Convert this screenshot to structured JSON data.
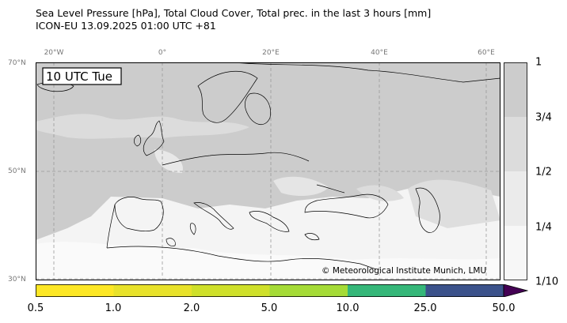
{
  "title_line1": "Sea Level Pressure [hPa], Total Cloud Cover, Total prec. in the last 3 hours [mm]",
  "title_line2": "ICON-EU 13.09.2025 01:00 UTC +81",
  "time_label": "10 UTC Tue",
  "copyright": "© Meteorological Institute Munich, LMU",
  "gridlines": {
    "longitude": [
      "20°W",
      "0°",
      "20°E",
      "40°E",
      "60°E"
    ],
    "latitude": [
      "70°N",
      "50°N",
      "30°N"
    ]
  },
  "cloud_cover_scale": {
    "ticks": [
      "1",
      "3/4",
      "1/2",
      "1/4",
      "1/10"
    ],
    "values": [
      1.0,
      0.75,
      0.5,
      0.25,
      0.1
    ],
    "colors": [
      "#cccccc",
      "#dcdcdc",
      "#ebebeb",
      "#f7f7f7"
    ]
  },
  "precip_scale": {
    "ticks": [
      "0.5",
      "1.0",
      "2.0",
      "5.0",
      "10.0",
      "25.0",
      "50.0"
    ],
    "values": [
      0.5,
      1.0,
      2.0,
      5.0,
      10.0,
      25.0,
      50.0
    ],
    "colors": [
      "#fde725",
      "#e8e22a",
      "#cfe02a",
      "#a5db36",
      "#35b779",
      "#3b528b"
    ],
    "extend_color": "#440154"
  }
}
